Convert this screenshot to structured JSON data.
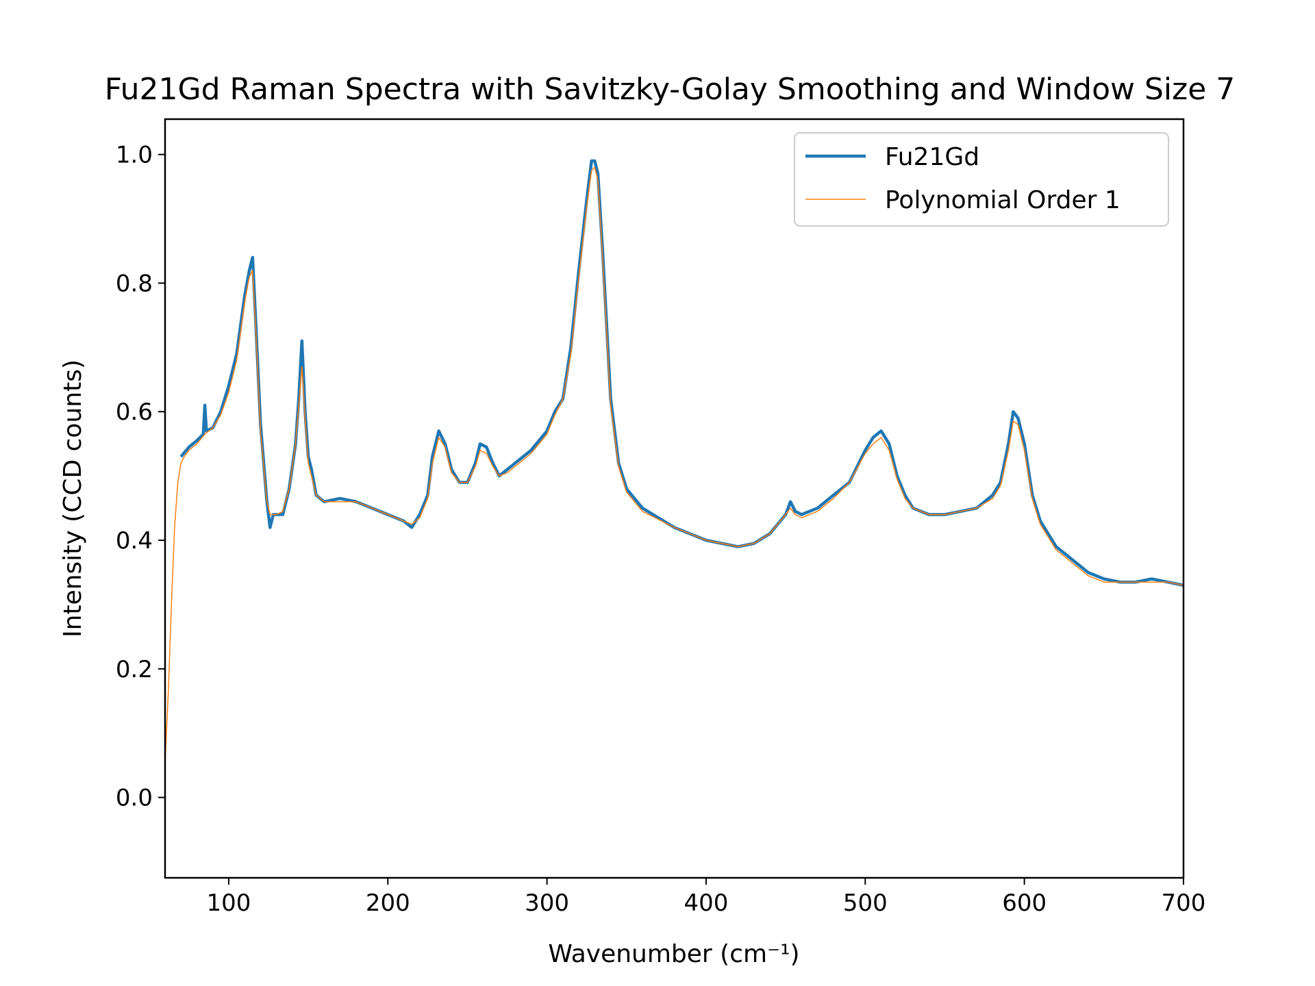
{
  "chart_data": {
    "type": "line",
    "title": "Fu21Gd Raman Spectra with Savitzky-Golay Smoothing and Window Size 7",
    "xlabel": "Wavenumber (cm⁻¹)",
    "ylabel": "Intensity (CCD counts)",
    "xlim": [
      60,
      700
    ],
    "ylim": [
      -0.125,
      1.055
    ],
    "xticks": [
      100,
      200,
      300,
      400,
      500,
      600,
      700
    ],
    "xtick_labels": [
      "100",
      "200",
      "300",
      "400",
      "500",
      "600",
      "700"
    ],
    "yticks": [
      0.0,
      0.2,
      0.4,
      0.6,
      0.8,
      1.0
    ],
    "ytick_labels": [
      "0.0",
      "0.2",
      "0.4",
      "0.6",
      "0.8",
      "1.0"
    ],
    "grid": false,
    "legend_position": "top-right",
    "series": [
      {
        "name": "Fu21Gd",
        "color": "#1f77b4",
        "x": [
          70,
          75,
          80,
          84,
          85,
          86,
          90,
          95,
          100,
          105,
          110,
          113,
          115,
          117,
          120,
          124,
          126,
          128,
          130,
          134,
          138,
          142,
          144,
          146,
          148,
          150,
          152,
          155,
          160,
          170,
          180,
          190,
          200,
          210,
          215,
          220,
          225,
          228,
          232,
          236,
          240,
          245,
          250,
          255,
          258,
          262,
          266,
          270,
          275,
          280,
          290,
          300,
          305,
          310,
          315,
          320,
          325,
          328,
          330,
          332,
          335,
          340,
          345,
          350,
          360,
          380,
          400,
          420,
          430,
          440,
          450,
          453,
          456,
          460,
          470,
          480,
          490,
          500,
          505,
          510,
          515,
          520,
          525,
          530,
          540,
          550,
          560,
          570,
          580,
          585,
          590,
          593,
          596,
          600,
          605,
          610,
          620,
          630,
          640,
          650,
          660,
          670,
          680,
          690,
          700
        ],
        "y": [
          0.53,
          0.545,
          0.555,
          0.565,
          0.61,
          0.57,
          0.575,
          0.6,
          0.64,
          0.69,
          0.78,
          0.82,
          0.84,
          0.74,
          0.58,
          0.46,
          0.42,
          0.44,
          0.44,
          0.44,
          0.48,
          0.55,
          0.62,
          0.71,
          0.6,
          0.53,
          0.51,
          0.47,
          0.46,
          0.465,
          0.46,
          0.45,
          0.44,
          0.43,
          0.42,
          0.44,
          0.47,
          0.53,
          0.57,
          0.55,
          0.51,
          0.49,
          0.49,
          0.52,
          0.55,
          0.545,
          0.52,
          0.5,
          0.51,
          0.52,
          0.54,
          0.57,
          0.6,
          0.62,
          0.7,
          0.82,
          0.93,
          0.99,
          0.99,
          0.97,
          0.85,
          0.62,
          0.52,
          0.48,
          0.45,
          0.42,
          0.4,
          0.39,
          0.395,
          0.41,
          0.44,
          0.46,
          0.445,
          0.44,
          0.45,
          0.47,
          0.49,
          0.54,
          0.56,
          0.57,
          0.55,
          0.5,
          0.47,
          0.45,
          0.44,
          0.44,
          0.445,
          0.45,
          0.47,
          0.49,
          0.55,
          0.6,
          0.59,
          0.55,
          0.47,
          0.43,
          0.39,
          0.37,
          0.35,
          0.34,
          0.335,
          0.335,
          0.34,
          0.335,
          0.33
        ]
      },
      {
        "name": "Polynomial Order 1",
        "color": "#ff7f0e",
        "x": [
          60,
          62,
          64,
          66,
          68,
          70,
          72,
          75,
          80,
          85,
          90,
          95,
          100,
          105,
          110,
          113,
          115,
          117,
          120,
          124,
          126,
          128,
          130,
          134,
          138,
          142,
          144,
          146,
          148,
          150,
          152,
          155,
          160,
          170,
          180,
          190,
          200,
          210,
          215,
          220,
          225,
          228,
          232,
          236,
          240,
          245,
          250,
          255,
          258,
          262,
          266,
          270,
          275,
          280,
          290,
          300,
          305,
          310,
          315,
          320,
          325,
          328,
          330,
          332,
          335,
          340,
          345,
          350,
          360,
          380,
          400,
          420,
          430,
          440,
          450,
          453,
          456,
          460,
          470,
          480,
          490,
          500,
          505,
          510,
          515,
          520,
          525,
          530,
          540,
          550,
          560,
          570,
          580,
          585,
          590,
          593,
          596,
          600,
          605,
          610,
          620,
          630,
          640,
          650,
          660,
          670,
          680,
          690,
          700
        ],
        "y": [
          0.055,
          0.16,
          0.3,
          0.42,
          0.49,
          0.52,
          0.53,
          0.54,
          0.55,
          0.565,
          0.575,
          0.595,
          0.63,
          0.68,
          0.77,
          0.81,
          0.82,
          0.73,
          0.57,
          0.46,
          0.44,
          0.44,
          0.44,
          0.445,
          0.48,
          0.55,
          0.61,
          0.67,
          0.59,
          0.52,
          0.5,
          0.47,
          0.46,
          0.46,
          0.46,
          0.45,
          0.44,
          0.43,
          0.425,
          0.435,
          0.465,
          0.52,
          0.56,
          0.545,
          0.505,
          0.49,
          0.49,
          0.515,
          0.54,
          0.535,
          0.515,
          0.5,
          0.505,
          0.515,
          0.535,
          0.565,
          0.595,
          0.62,
          0.69,
          0.81,
          0.92,
          0.975,
          0.98,
          0.96,
          0.84,
          0.61,
          0.515,
          0.475,
          0.445,
          0.42,
          0.4,
          0.39,
          0.395,
          0.41,
          0.44,
          0.45,
          0.44,
          0.435,
          0.445,
          0.465,
          0.49,
          0.535,
          0.55,
          0.56,
          0.54,
          0.495,
          0.465,
          0.45,
          0.44,
          0.44,
          0.445,
          0.45,
          0.465,
          0.485,
          0.54,
          0.585,
          0.58,
          0.54,
          0.465,
          0.425,
          0.385,
          0.365,
          0.345,
          0.335,
          0.335,
          0.335,
          0.335,
          0.335,
          0.33
        ]
      }
    ]
  }
}
